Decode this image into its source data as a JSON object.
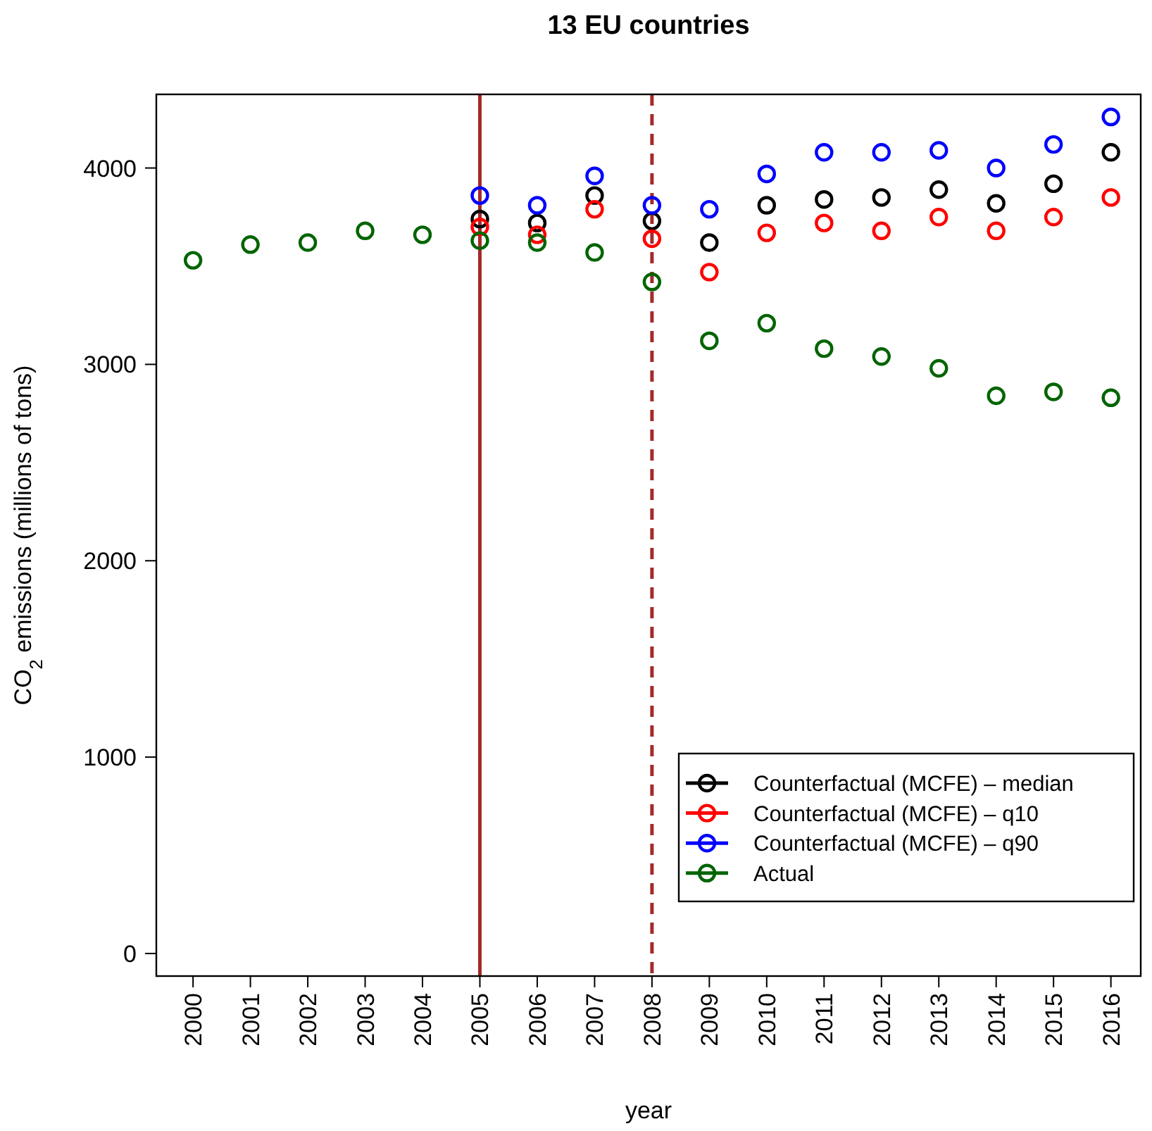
{
  "chart_data": {
    "type": "scatter",
    "title": "13 EU countries",
    "xlabel": "year",
    "ylabel": "CO$_{2}$ emissions (millions of tons)",
    "x": [
      2000,
      2001,
      2002,
      2003,
      2004,
      2005,
      2006,
      2007,
      2008,
      2009,
      2010,
      2011,
      2012,
      2013,
      2014,
      2015,
      2016
    ],
    "series": [
      {
        "name": "Counterfactual (MCFE) – median",
        "color": "#000000",
        "values": [
          null,
          null,
          null,
          null,
          null,
          3740,
          3720,
          3860,
          3730,
          3620,
          3810,
          3840,
          3850,
          3890,
          3820,
          3920,
          4080
        ]
      },
      {
        "name": "Counterfactual (MCFE) – q10",
        "color": "#ff0000",
        "values": [
          null,
          null,
          null,
          null,
          null,
          3700,
          3660,
          3790,
          3640,
          3470,
          3670,
          3720,
          3680,
          3750,
          3680,
          3750,
          3850
        ]
      },
      {
        "name": "Counterfactual (MCFE) – q90",
        "color": "#0000ff",
        "values": [
          null,
          null,
          null,
          null,
          null,
          3860,
          3810,
          3960,
          3810,
          3790,
          3970,
          4080,
          4080,
          4090,
          4000,
          4120,
          4260
        ]
      },
      {
        "name": "Actual",
        "color": "#006400",
        "values": [
          3530,
          3610,
          3620,
          3680,
          3660,
          3630,
          3620,
          3570,
          3420,
          3120,
          3210,
          3080,
          3040,
          2980,
          2840,
          2860,
          2830
        ]
      }
    ],
    "marker": "circle",
    "xlim": [
      1999.36,
      2016.52
    ],
    "xticks": [
      2000,
      2001,
      2002,
      2003,
      2004,
      2005,
      2006,
      2007,
      2008,
      2009,
      2010,
      2011,
      2012,
      2013,
      2014,
      2015,
      2016
    ],
    "ylim": [
      -115,
      4375
    ],
    "yticks": [
      0,
      1000,
      2000,
      3000,
      4000
    ],
    "ref_lines": [
      {
        "axis": "x",
        "value": 2005,
        "color": "#a52a2a",
        "line_style": "solid"
      },
      {
        "axis": "x",
        "value": 2008,
        "color": "#a52a2a",
        "line_style": "dashed"
      }
    ],
    "grid": false,
    "legend": "bottom right"
  }
}
